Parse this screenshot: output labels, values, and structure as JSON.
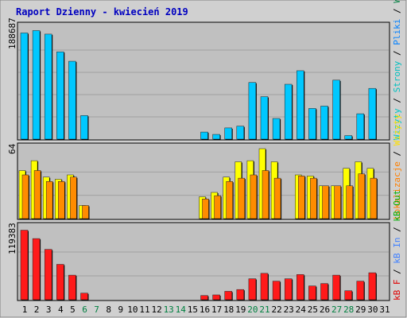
{
  "chart_data": [
    {
      "type": "bar",
      "panel": "top",
      "title": "Raport Dzienny -  kwiecień  2019",
      "max_label": "188687",
      "right_label": {
        "parts": [
          {
            "text": "Wizyty",
            "color": "#00c8c8"
          },
          {
            "text": " / ",
            "color": "#000000"
          },
          {
            "text": "Strony",
            "color": "#00c0c0"
          },
          {
            "text": " / ",
            "color": "#000000"
          },
          {
            "text": "Pliki",
            "color": "#0080ff"
          },
          {
            "text": " / ",
            "color": "#000000"
          },
          {
            "text": "Wywołania",
            "color": "#008040"
          }
        ]
      },
      "categories": [
        "1",
        "2",
        "3",
        "4",
        "5",
        "6",
        "7",
        "8",
        "9",
        "10",
        "11",
        "12",
        "13",
        "14",
        "15",
        "16",
        "17",
        "18",
        "19",
        "20",
        "21",
        "22",
        "23",
        "24",
        "25",
        "26",
        "27",
        "28",
        "29",
        "30",
        "31"
      ],
      "ylim": [
        0,
        188687
      ],
      "series": [
        {
          "name": "Pliki",
          "color": "#00c8ff",
          "values": [
            180000,
            184000,
            178000,
            148000,
            132000,
            40000,
            0,
            0,
            0,
            0,
            0,
            0,
            0,
            0,
            0,
            12000,
            8000,
            19000,
            22000,
            96000,
            72000,
            35000,
            93000,
            116000,
            52000,
            56000,
            100000,
            6000,
            43000,
            86000,
            0
          ]
        }
      ]
    },
    {
      "type": "bar",
      "panel": "middle",
      "max_label": "64",
      "right_label": {
        "parts": [
          {
            "text": "Lokalizacje",
            "color": "#ff8000"
          },
          {
            "text": " / ",
            "color": "#000000"
          },
          {
            "text": "Wizyty",
            "color": "#ffe000"
          }
        ]
      },
      "categories": [
        "1",
        "2",
        "3",
        "4",
        "5",
        "6",
        "7",
        "8",
        "9",
        "10",
        "11",
        "12",
        "13",
        "14",
        "15",
        "16",
        "17",
        "18",
        "19",
        "20",
        "21",
        "22",
        "23",
        "24",
        "25",
        "26",
        "27",
        "28",
        "29",
        "30",
        "31"
      ],
      "ylim": [
        0,
        64
      ],
      "series": [
        {
          "name": "Wizyty",
          "color": "#ffff00",
          "values": [
            44,
            53,
            38,
            36,
            40,
            12,
            0,
            0,
            0,
            0,
            0,
            0,
            0,
            0,
            0,
            20,
            24,
            38,
            52,
            53,
            64,
            52,
            0,
            40,
            39,
            30,
            30,
            46,
            52,
            46,
            0
          ]
        },
        {
          "name": "Lokalizacje",
          "color": "#ff8c00",
          "values": [
            40,
            44,
            34,
            34,
            38,
            12,
            0,
            0,
            0,
            0,
            0,
            0,
            0,
            0,
            0,
            18,
            21,
            34,
            37,
            40,
            44,
            37,
            0,
            39,
            37,
            30,
            30,
            30,
            41,
            37,
            0
          ]
        }
      ]
    },
    {
      "type": "bar",
      "panel": "bottom",
      "max_label": "119383",
      "right_label": {
        "parts": [
          {
            "text": "kB F",
            "color": "#e00000"
          },
          {
            "text": " / ",
            "color": "#000000"
          },
          {
            "text": "kB In",
            "color": "#4080ff"
          },
          {
            "text": " / ",
            "color": "#000000"
          },
          {
            "text": "kB Out",
            "color": "#00b000"
          }
        ]
      },
      "categories": [
        "1",
        "2",
        "3",
        "4",
        "5",
        "6",
        "7",
        "8",
        "9",
        "10",
        "11",
        "12",
        "13",
        "14",
        "15",
        "16",
        "17",
        "18",
        "19",
        "20",
        "21",
        "22",
        "23",
        "24",
        "25",
        "26",
        "27",
        "28",
        "29",
        "30",
        "31"
      ],
      "ylim": [
        0,
        119383
      ],
      "series": [
        {
          "name": "kB F",
          "color": "#ff1a1a",
          "values": [
            116000,
            102000,
            84000,
            59000,
            41000,
            11000,
            0,
            0,
            0,
            0,
            0,
            0,
            0,
            0,
            0,
            7000,
            8000,
            14000,
            17000,
            35000,
            44000,
            31000,
            35000,
            42000,
            23000,
            27000,
            41000,
            15000,
            31000,
            45000,
            0
          ]
        }
      ]
    }
  ],
  "x_axis": {
    "labels": [
      "1",
      "2",
      "3",
      "4",
      "5",
      "6",
      "7",
      "8",
      "9",
      "10",
      "11",
      "12",
      "13",
      "14",
      "15",
      "16",
      "17",
      "18",
      "19",
      "20",
      "21",
      "22",
      "23",
      "24",
      "25",
      "26",
      "27",
      "28",
      "29",
      "30",
      "31"
    ],
    "weekend_days": [
      6,
      7,
      13,
      14,
      20,
      21,
      27,
      28
    ],
    "weekday_color": "#000000",
    "weekend_color": "#008040"
  },
  "colors": {
    "frame": "#d0d0d0",
    "plot_bg": "#c0c0c0",
    "title": "#0000c0",
    "grid": "#a0a0a0",
    "bar_shadow": "#000000"
  }
}
